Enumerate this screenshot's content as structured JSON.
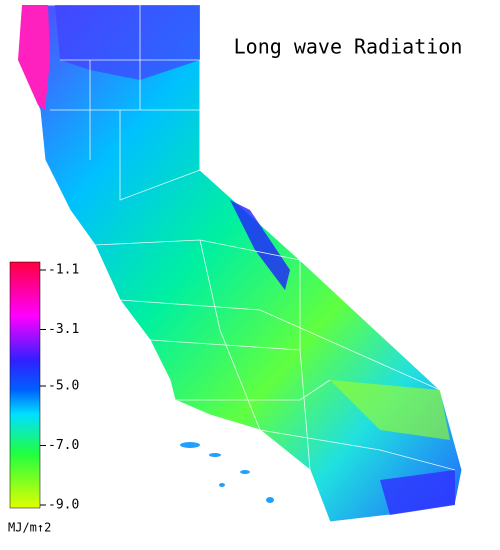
{
  "title": "Long wave Radiation",
  "colorbar": {
    "ticks": [
      {
        "value": -1.1,
        "label": "-1.1"
      },
      {
        "value": -3.1,
        "label": "-3.1"
      },
      {
        "value": -5.0,
        "label": "-5.0"
      },
      {
        "value": -7.0,
        "label": "-7.0"
      },
      {
        "value": -9.0,
        "label": "-9.0"
      }
    ],
    "unit": "MJ/m↑2"
  }
}
